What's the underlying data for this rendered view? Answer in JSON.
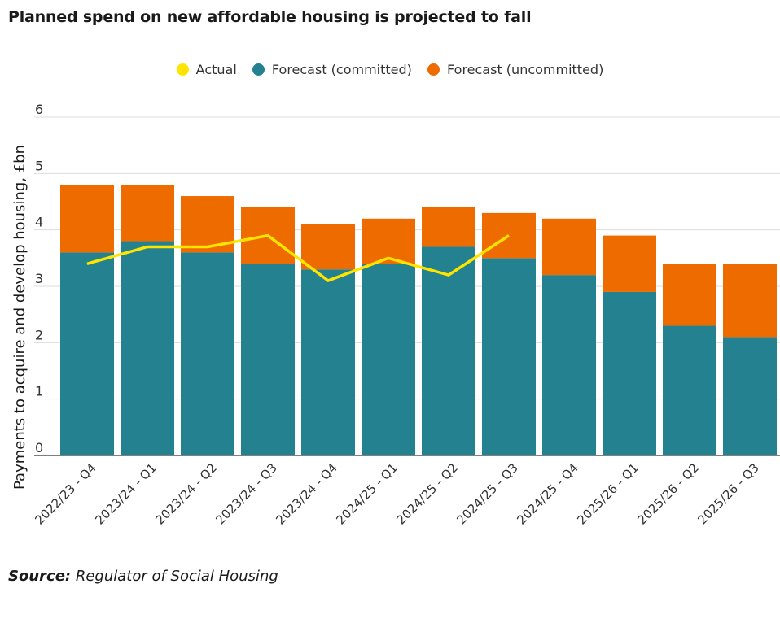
{
  "chart_data": {
    "type": "bar",
    "stacked": true,
    "title": "Planned spend on new affordable housing is projected to fall",
    "ylabel": "Payments to acquire and develop housing, £bn",
    "xlabel": "",
    "ylim": [
      0,
      6
    ],
    "yticks": [
      "0",
      "1",
      "2",
      "3",
      "4",
      "5",
      "6"
    ],
    "categories": [
      "2022/23 - Q4",
      "2023/24 - Q1",
      "2023/24 - Q2",
      "2023/24 - Q3",
      "2023/24 - Q4",
      "2024/25 - Q1",
      "2024/25 - Q2",
      "2024/25 - Q3",
      "2024/25 - Q4",
      "2025/26 - Q1",
      "2025/26 - Q2",
      "2025/26 - Q3"
    ],
    "series": [
      {
        "name": "Forecast (committed)",
        "type": "bar",
        "color": "#24818F",
        "values": [
          3.6,
          3.8,
          3.6,
          3.4,
          3.3,
          3.4,
          3.7,
          3.5,
          3.2,
          2.9,
          2.3,
          2.1
        ]
      },
      {
        "name": "Forecast (uncommitted)",
        "type": "bar",
        "color": "#EE6B00",
        "values": [
          1.2,
          1.0,
          1.0,
          1.0,
          0.8,
          0.8,
          0.7,
          0.8,
          1.0,
          1.0,
          1.1,
          1.3
        ]
      },
      {
        "name": "Actual",
        "type": "line",
        "color": "#FFE400",
        "values": [
          3.4,
          3.7,
          3.7,
          3.9,
          3.1,
          3.5,
          3.2,
          3.9,
          null,
          null,
          null,
          null
        ]
      }
    ],
    "grid": true,
    "legend_position": "top-center"
  },
  "legend": {
    "items": [
      {
        "label": "Actual",
        "color": "#FFE400"
      },
      {
        "label": "Forecast (committed)",
        "color": "#24818F"
      },
      {
        "label": "Forecast (uncommitted)",
        "color": "#EE6B00"
      }
    ]
  },
  "source": {
    "prefix": "Source:",
    "text": "Regulator of Social Housing"
  }
}
